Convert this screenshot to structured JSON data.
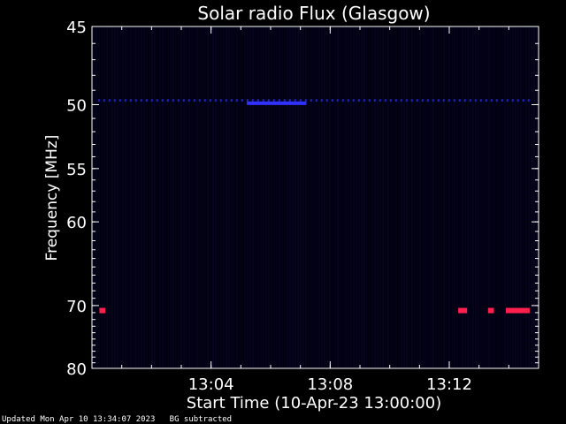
{
  "chart_data": {
    "type": "heatmap",
    "title": "Solar radio Flux (Glasgow)",
    "xlabel": "Start Time (10-Apr-23 13:00:00)",
    "ylabel": "Frequency [MHz]",
    "x_ticks": [
      "13:04",
      "13:08",
      "13:12"
    ],
    "x_tick_minutes": [
      4,
      8,
      12
    ],
    "xlim_minutes": [
      0,
      15
    ],
    "y_ticks": [
      45,
      50,
      55,
      60,
      70,
      80
    ],
    "ylim": [
      45,
      80
    ],
    "y_scale": "reciprocal",
    "background_color": "#000010",
    "features": [
      {
        "kind": "band",
        "frequency_mhz": 49.7,
        "t_start_min": 0.2,
        "t_end_min": 14.8,
        "color": "#2020c8",
        "intensity": "low"
      },
      {
        "kind": "band",
        "frequency_mhz": 49.9,
        "t_start_min": 5.2,
        "t_end_min": 7.2,
        "color": "#3030ff",
        "intensity": "medium"
      },
      {
        "kind": "spot",
        "frequency_mhz": 70.7,
        "t_start_min": 0.25,
        "t_end_min": 0.45,
        "color": "#ff2050",
        "intensity": "high"
      },
      {
        "kind": "spot",
        "frequency_mhz": 70.7,
        "t_start_min": 12.3,
        "t_end_min": 12.6,
        "color": "#ff2050",
        "intensity": "high"
      },
      {
        "kind": "spot",
        "frequency_mhz": 70.7,
        "t_start_min": 13.3,
        "t_end_min": 13.5,
        "color": "#ff2050",
        "intensity": "high"
      },
      {
        "kind": "spot",
        "frequency_mhz": 70.7,
        "t_start_min": 13.9,
        "t_end_min": 14.7,
        "color": "#ff2050",
        "intensity": "high"
      }
    ]
  },
  "footer": {
    "updated": "Updated Mon Apr 10 13:34:07 2023",
    "note": "BG subtracted"
  }
}
